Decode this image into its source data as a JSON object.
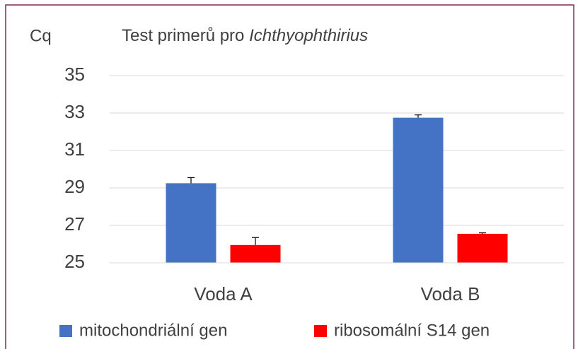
{
  "chart_data": {
    "type": "bar",
    "title": [
      "Test primerů pro",
      "Ichthyophthirius"
    ],
    "y_label": "Cq",
    "categories": [
      "Voda A",
      "Voda B"
    ],
    "series": [
      {
        "name": "mitochondriální gen",
        "color": "#4472c4",
        "values": [
          29.25,
          32.75
        ],
        "errors": [
          0.3,
          0.15
        ]
      },
      {
        "name": "ribosomální S14 gen",
        "color": "#ff0000",
        "values": [
          25.95,
          26.55
        ],
        "errors": [
          0.4,
          0.05
        ]
      }
    ],
    "ylim": [
      25,
      35
    ],
    "yticks": [
      25,
      27,
      29,
      31,
      33,
      35
    ],
    "grid": true
  }
}
